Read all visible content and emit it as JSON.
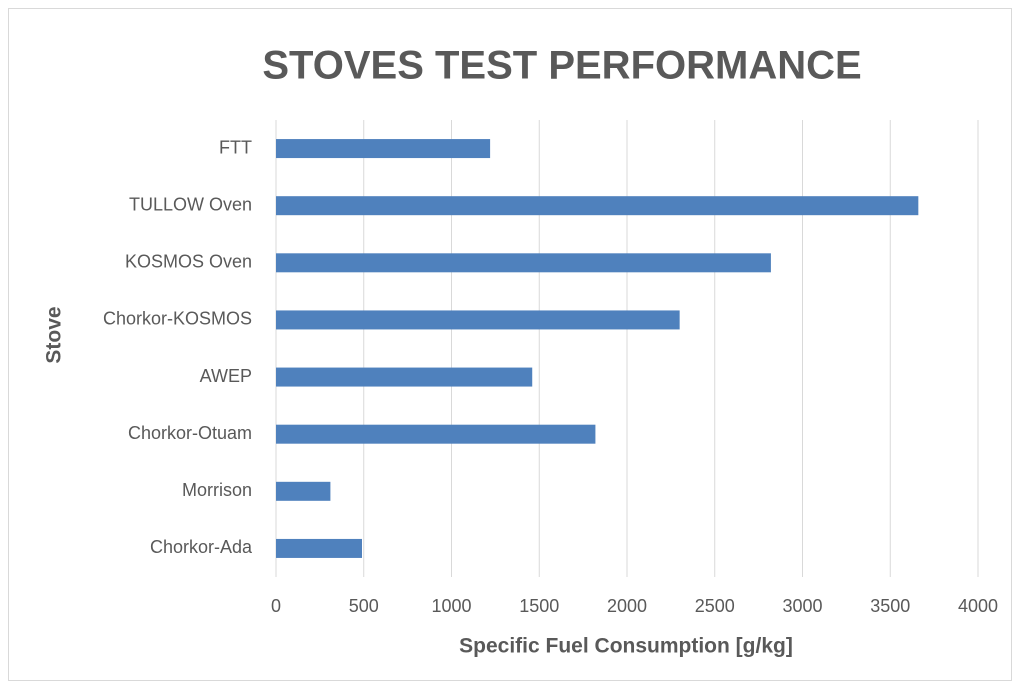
{
  "chart_data": {
    "type": "bar",
    "orientation": "horizontal",
    "title": "STOVES TEST PERFORMANCE",
    "x_label": "Specific Fuel Consumption [g/kg]",
    "y_label": "Stove",
    "categories": [
      "FTT",
      "TULLOW Oven",
      "KOSMOS Oven",
      "Chorkor-KOSMOS",
      "AWEP",
      "Chorkor-Otuam",
      "Morrison",
      "Chorkor-Ada"
    ],
    "values": [
      1220,
      3660,
      2820,
      2300,
      1460,
      1820,
      310,
      490
    ],
    "color": "#4f81bd",
    "xlim": [
      0,
      4000
    ],
    "xticks": [
      0,
      500,
      1000,
      1500,
      2000,
      2500,
      3000,
      3500,
      4000
    ],
    "grid": true
  }
}
